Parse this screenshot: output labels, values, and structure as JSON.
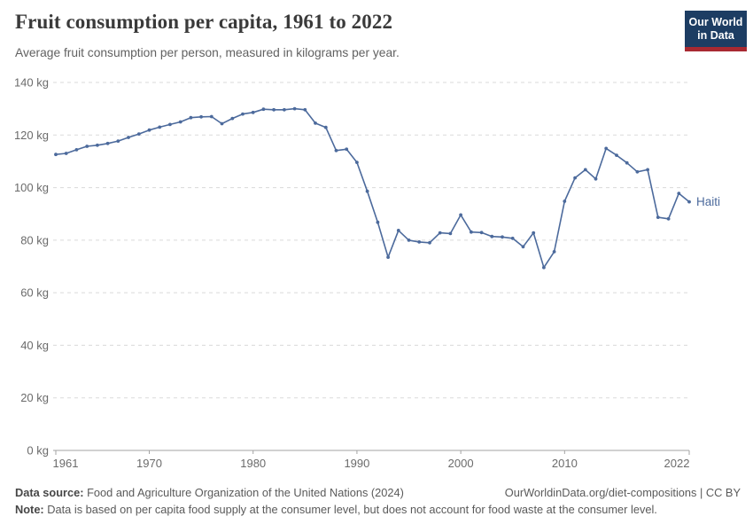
{
  "header": {
    "title": "Fruit consumption per capita, 1961 to 2022",
    "subtitle": "Average fruit consumption per person, measured in kilograms per year.",
    "logo": {
      "line1": "Our World",
      "line2": "in Data",
      "bg_color": "#1d3d63",
      "accent_color": "#a82931"
    }
  },
  "chart_data": {
    "type": "line",
    "title": "Fruit consumption per capita, 1961 to 2022",
    "ylabel": "",
    "xlabel": "",
    "unit": "kg",
    "ylim": [
      0,
      140
    ],
    "yticks": [
      0,
      20,
      40,
      60,
      80,
      100,
      120,
      140
    ],
    "ytick_suffix": " kg",
    "xticks": [
      1961,
      1970,
      1980,
      1990,
      2000,
      2010,
      2022
    ],
    "grid": "dashed",
    "grid_color": "#dadada",
    "axis_color": "#a3a3a3",
    "tick_label_color": "#6b6b6b",
    "x": [
      1961,
      1962,
      1963,
      1964,
      1965,
      1966,
      1967,
      1968,
      1969,
      1970,
      1971,
      1972,
      1973,
      1974,
      1975,
      1976,
      1977,
      1978,
      1979,
      1980,
      1981,
      1982,
      1983,
      1984,
      1985,
      1986,
      1987,
      1988,
      1989,
      1990,
      1991,
      1992,
      1993,
      1994,
      1995,
      1996,
      1997,
      1998,
      1999,
      2000,
      2001,
      2002,
      2003,
      2004,
      2005,
      2006,
      2007,
      2008,
      2009,
      2010,
      2011,
      2012,
      2013,
      2014,
      2015,
      2016,
      2017,
      2018,
      2019,
      2020,
      2021,
      2022
    ],
    "series": [
      {
        "name": "Haiti",
        "color": "#4c6a9c",
        "values": [
          112.6,
          113.0,
          114.4,
          115.7,
          116.1,
          116.8,
          117.7,
          119.1,
          120.4,
          121.9,
          123.0,
          124.0,
          125.0,
          126.6,
          126.9,
          127.0,
          124.3,
          126.3,
          128.0,
          128.6,
          129.8,
          129.6,
          129.6,
          130.0,
          129.6,
          124.5,
          122.9,
          114.1,
          114.6,
          109.6,
          98.6,
          86.8,
          73.5,
          83.7,
          80.0,
          79.3,
          79.0,
          82.8,
          82.5,
          89.6,
          83.1,
          82.9,
          81.4,
          81.2,
          80.7,
          77.5,
          82.8,
          69.6,
          75.6,
          94.8,
          103.7,
          106.8,
          103.3,
          114.9,
          112.3,
          109.4,
          106.0,
          106.8,
          88.7,
          88.1,
          97.8,
          94.6
        ]
      }
    ],
    "legend_position": "end-of-line-label"
  },
  "footer": {
    "source_label": "Data source:",
    "source_text": "Food and Agriculture Organization of the United Nations (2024)",
    "url": "OurWorldinData.org/diet-compositions",
    "license": " | CC BY",
    "note_label": "Note:",
    "note_text": "Data is based on per capita food supply at the consumer level, but does not account for food waste at the consumer level."
  }
}
